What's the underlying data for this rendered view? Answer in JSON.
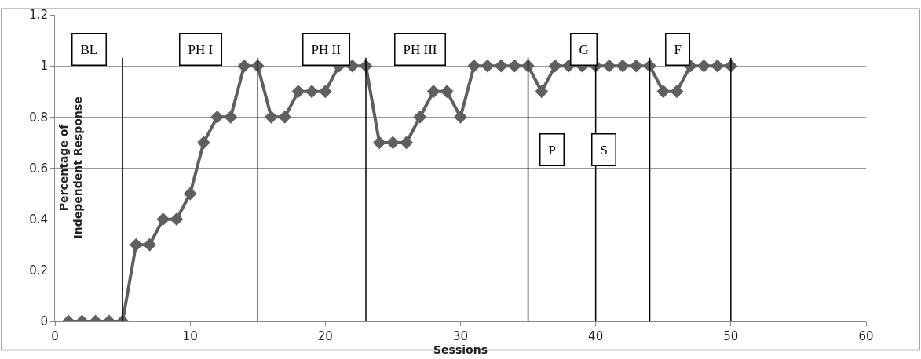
{
  "chart_data": {
    "type": "line",
    "xlabel": "Sessions",
    "ylabel": "Percentage of Independent Response",
    "x": [
      1,
      2,
      3,
      4,
      5,
      6,
      7,
      8,
      9,
      10,
      11,
      12,
      13,
      14,
      15,
      16,
      17,
      18,
      19,
      20,
      21,
      22,
      23,
      24,
      25,
      26,
      27,
      28,
      29,
      30,
      31,
      32,
      33,
      34,
      35,
      36,
      37,
      38,
      39,
      40,
      41,
      42,
      43,
      44,
      45,
      46,
      47,
      48,
      49,
      50
    ],
    "series": [
      {
        "color": "#5f5f5f",
        "values": [
          0,
          0,
          0,
          0,
          0,
          0.3,
          0.3,
          0.4,
          0.4,
          0.5,
          0.7,
          0.8,
          0.8,
          1,
          1,
          0.8,
          0.8,
          0.9,
          0.9,
          0.9,
          1,
          1,
          1,
          0.7,
          0.7,
          0.7,
          0.8,
          0.9,
          0.9,
          0.8,
          1,
          1,
          1,
          1,
          1,
          0.9,
          1,
          1,
          1,
          1,
          1,
          1,
          1,
          1,
          0.9,
          0.9,
          1,
          1,
          1,
          1
        ]
      }
    ],
    "xlim": [
      0,
      60
    ],
    "xticks": [
      0,
      10,
      20,
      30,
      40,
      50,
      60
    ],
    "ylim": [
      0,
      1.2
    ],
    "yticks": [
      0,
      0.2,
      0.4,
      0.6,
      0.8,
      1,
      1.2
    ],
    "grid": "y",
    "marker": "diamond",
    "line_style": "solid",
    "ref_lines": [
      {
        "axis": "x",
        "value": 5,
        "color": "#000000"
      },
      {
        "axis": "x",
        "value": 15,
        "color": "#000000"
      },
      {
        "axis": "x",
        "value": 23,
        "color": "#000000"
      },
      {
        "axis": "x",
        "value": 35,
        "color": "#000000"
      },
      {
        "axis": "x",
        "value": 40,
        "color": "#000000"
      },
      {
        "axis": "x",
        "value": 44,
        "color": "#000000"
      },
      {
        "axis": "x",
        "value": 50,
        "color": "#000000"
      }
    ],
    "annotations": [
      "BL",
      "PH I",
      "PH II",
      "PH III",
      "G",
      "F",
      "P",
      "S"
    ]
  }
}
